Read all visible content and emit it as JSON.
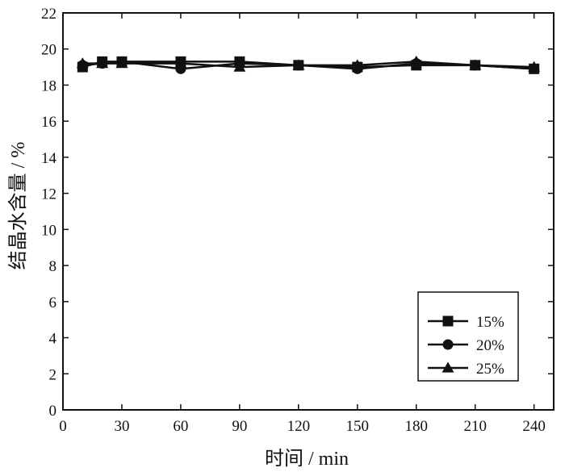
{
  "chart_data": {
    "type": "line",
    "title": "",
    "xlabel": "时间 / min",
    "ylabel": "结晶水含量 / %",
    "xlim": [
      0,
      250
    ],
    "ylim": [
      0,
      22
    ],
    "xticks": [
      0,
      30,
      60,
      90,
      120,
      150,
      180,
      210,
      240
    ],
    "yticks": [
      0,
      2,
      4,
      6,
      8,
      10,
      12,
      14,
      16,
      18,
      20,
      22
    ],
    "grid": false,
    "legend_position": "bottom-right",
    "series": [
      {
        "name": "15%",
        "marker": "square",
        "x": [
          10,
          20,
          30,
          60,
          90,
          120,
          150,
          180,
          210,
          240
        ],
        "y": [
          19.0,
          19.3,
          19.3,
          19.3,
          19.3,
          19.1,
          19.0,
          19.1,
          19.1,
          18.9
        ]
      },
      {
        "name": "20%",
        "marker": "circle",
        "x": [
          10,
          20,
          30,
          60,
          90,
          120,
          150,
          180,
          210,
          240
        ],
        "y": [
          19.1,
          19.2,
          19.3,
          18.9,
          19.2,
          19.1,
          18.9,
          19.2,
          19.1,
          18.9
        ]
      },
      {
        "name": "25%",
        "marker": "triangle",
        "x": [
          10,
          20,
          30,
          60,
          90,
          120,
          150,
          180,
          210,
          240
        ],
        "y": [
          19.2,
          19.2,
          19.2,
          19.2,
          19.0,
          19.1,
          19.1,
          19.3,
          19.1,
          19.0
        ]
      }
    ]
  }
}
